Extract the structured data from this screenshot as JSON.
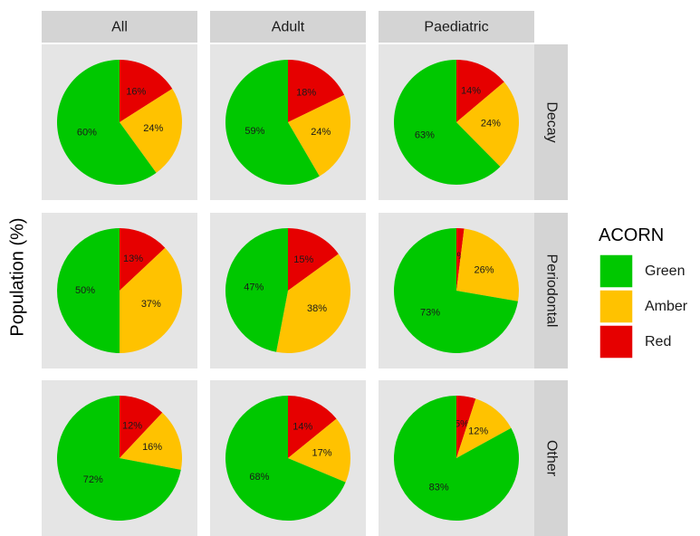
{
  "chart_data": {
    "type": "pie",
    "ylabel": "Population (%)",
    "columns": [
      "All",
      "Adult",
      "Paediatric"
    ],
    "rows": [
      "Decay",
      "Periodontal",
      "Other"
    ],
    "legend": {
      "title": "ACORN",
      "position": "right",
      "entries": [
        {
          "name": "Green",
          "color": "#00C800"
        },
        {
          "name": "Amber",
          "color": "#FFC200"
        },
        {
          "name": "Red",
          "color": "#E60000"
        }
      ]
    },
    "panels": [
      {
        "column": "All",
        "row": "Decay",
        "slices": [
          {
            "category": "Red",
            "value": 16,
            "label": "16%"
          },
          {
            "category": "Amber",
            "value": 24,
            "label": "24%"
          },
          {
            "category": "Green",
            "value": 60,
            "label": "60%"
          }
        ]
      },
      {
        "column": "Adult",
        "row": "Decay",
        "slices": [
          {
            "category": "Red",
            "value": 18,
            "label": "18%"
          },
          {
            "category": "Amber",
            "value": 24,
            "label": "24%"
          },
          {
            "category": "Green",
            "value": 59,
            "label": "59%"
          }
        ]
      },
      {
        "column": "Paediatric",
        "row": "Decay",
        "slices": [
          {
            "category": "Red",
            "value": 14,
            "label": "14%"
          },
          {
            "category": "Amber",
            "value": 24,
            "label": "24%"
          },
          {
            "category": "Green",
            "value": 63,
            "label": "63%"
          }
        ]
      },
      {
        "column": "All",
        "row": "Periodontal",
        "slices": [
          {
            "category": "Red",
            "value": 13,
            "label": "13%"
          },
          {
            "category": "Amber",
            "value": 37,
            "label": "37%"
          },
          {
            "category": "Green",
            "value": 50,
            "label": "50%"
          }
        ]
      },
      {
        "column": "Adult",
        "row": "Periodontal",
        "slices": [
          {
            "category": "Red",
            "value": 15,
            "label": "15%"
          },
          {
            "category": "Amber",
            "value": 38,
            "label": "38%"
          },
          {
            "category": "Green",
            "value": 47,
            "label": "47%"
          }
        ]
      },
      {
        "column": "Paediatric",
        "row": "Periodontal",
        "slices": [
          {
            "category": "Red",
            "value": 2,
            "label": "2%"
          },
          {
            "category": "Amber",
            "value": 26,
            "label": "26%"
          },
          {
            "category": "Green",
            "value": 73,
            "label": "73%"
          }
        ]
      },
      {
        "column": "All",
        "row": "Other",
        "slices": [
          {
            "category": "Red",
            "value": 12,
            "label": "12%"
          },
          {
            "category": "Amber",
            "value": 16,
            "label": "16%"
          },
          {
            "category": "Green",
            "value": 72,
            "label": "72%"
          }
        ]
      },
      {
        "column": "Adult",
        "row": "Other",
        "slices": [
          {
            "category": "Red",
            "value": 14,
            "label": "14%"
          },
          {
            "category": "Amber",
            "value": 17,
            "label": "17%"
          },
          {
            "category": "Green",
            "value": 68,
            "label": "68%"
          }
        ]
      },
      {
        "column": "Paediatric",
        "row": "Other",
        "slices": [
          {
            "category": "Red",
            "value": 5,
            "label": "5%"
          },
          {
            "category": "Amber",
            "value": 12,
            "label": "12%"
          },
          {
            "category": "Green",
            "value": 83,
            "label": "83%"
          }
        ]
      }
    ]
  }
}
